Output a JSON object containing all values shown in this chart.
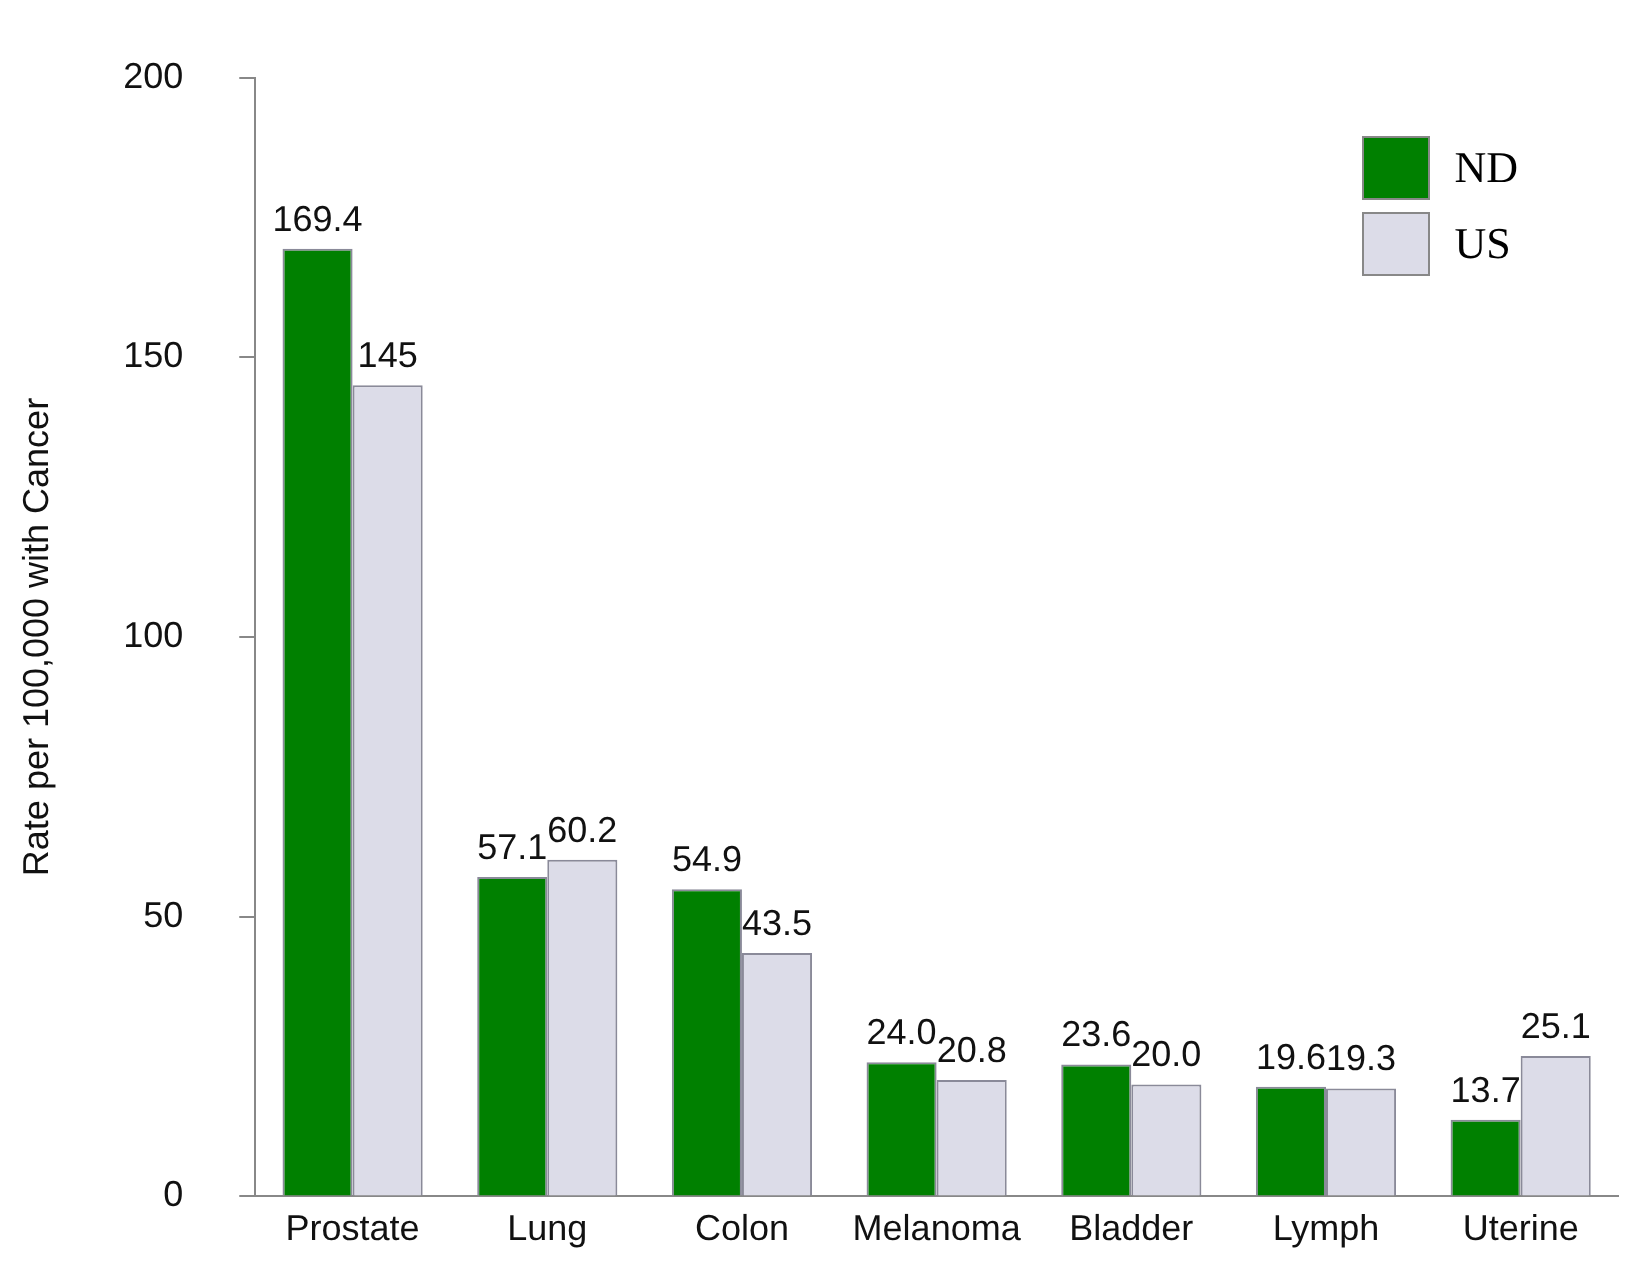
{
  "chart_data": {
    "type": "bar",
    "ylabel": "Rate per 100,000 with Cancer",
    "categories": [
      "Prostate",
      "Lung",
      "Colon",
      "Melanoma",
      "Bladder",
      "Lymph",
      "Uterine"
    ],
    "series": [
      {
        "name": "ND",
        "color": "#008000",
        "values": [
          169.4,
          57.1,
          54.9,
          24.0,
          23.6,
          19.6,
          13.7
        ],
        "value_labels": [
          "169.4",
          "57.1",
          "54.9",
          "24.0",
          "23.6",
          "19.6",
          "13.7"
        ]
      },
      {
        "name": "US",
        "color": "#dcdce8",
        "values": [
          145,
          60.2,
          43.5,
          20.8,
          20.0,
          19.3,
          25.1
        ],
        "value_labels": [
          "145",
          "60.2",
          "43.5",
          "20.8",
          "20.0",
          "19.3",
          "25.1"
        ]
      }
    ],
    "ylim": [
      0,
      200
    ],
    "yticks": [
      0,
      50,
      100,
      150,
      200
    ],
    "grid": false,
    "legend": "top right"
  }
}
